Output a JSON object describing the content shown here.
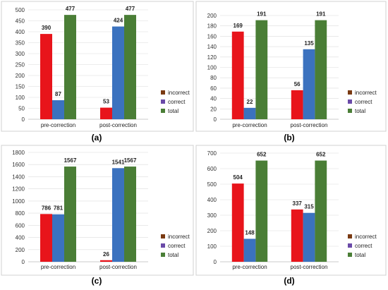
{
  "colors": {
    "incorrect": "#e8141b",
    "correct": "#3b72bf",
    "total": "#4a7e36"
  },
  "legend_swatch_colors": {
    "incorrect": "#7a3a12",
    "correct": "#6a4aa8",
    "total": "#4a7e36"
  },
  "chart_data": [
    {
      "type": "bar",
      "panel_label": "(a)",
      "categories": [
        "pre-correction",
        "post-correction"
      ],
      "series": [
        {
          "name": "incorrect",
          "values": [
            390,
            53
          ]
        },
        {
          "name": "correct",
          "values": [
            87,
            424
          ]
        },
        {
          "name": "total",
          "values": [
            477,
            477
          ]
        }
      ],
      "ylim": [
        0,
        500
      ],
      "yticks": [
        0,
        50,
        100,
        150,
        200,
        250,
        300,
        350,
        400,
        450,
        500
      ],
      "grid": true,
      "legend": "right"
    },
    {
      "type": "bar",
      "panel_label": "(b)",
      "categories": [
        "pre-correction",
        "post-correction"
      ],
      "series": [
        {
          "name": "incorrect",
          "values": [
            169,
            56
          ]
        },
        {
          "name": "correct",
          "values": [
            22,
            135
          ]
        },
        {
          "name": "total",
          "values": [
            191,
            191
          ]
        }
      ],
      "ylim": [
        0,
        200
      ],
      "yticks": [
        0,
        20,
        40,
        60,
        80,
        100,
        120,
        140,
        160,
        180,
        200
      ],
      "grid": true,
      "legend": "right"
    },
    {
      "type": "bar",
      "panel_label": "(c)",
      "categories": [
        "pre-correction",
        "post-correction"
      ],
      "series": [
        {
          "name": "incorrect",
          "values": [
            786,
            26
          ]
        },
        {
          "name": "correct",
          "values": [
            781,
            1541
          ]
        },
        {
          "name": "total",
          "values": [
            1567,
            1567
          ]
        }
      ],
      "ylim": [
        0,
        1800
      ],
      "yticks": [
        0,
        200,
        400,
        600,
        800,
        1000,
        1200,
        1400,
        1600,
        1800
      ],
      "grid": true,
      "legend": "right"
    },
    {
      "type": "bar",
      "panel_label": "(d)",
      "categories": [
        "pre-correction",
        "post-correction"
      ],
      "series": [
        {
          "name": "incorrect",
          "values": [
            504,
            337
          ]
        },
        {
          "name": "correct",
          "values": [
            148,
            315
          ]
        },
        {
          "name": "total",
          "values": [
            652,
            652
          ]
        }
      ],
      "ylim": [
        0,
        700
      ],
      "yticks": [
        0,
        100,
        200,
        300,
        400,
        500,
        600,
        700
      ],
      "grid": true,
      "legend": "right"
    }
  ]
}
